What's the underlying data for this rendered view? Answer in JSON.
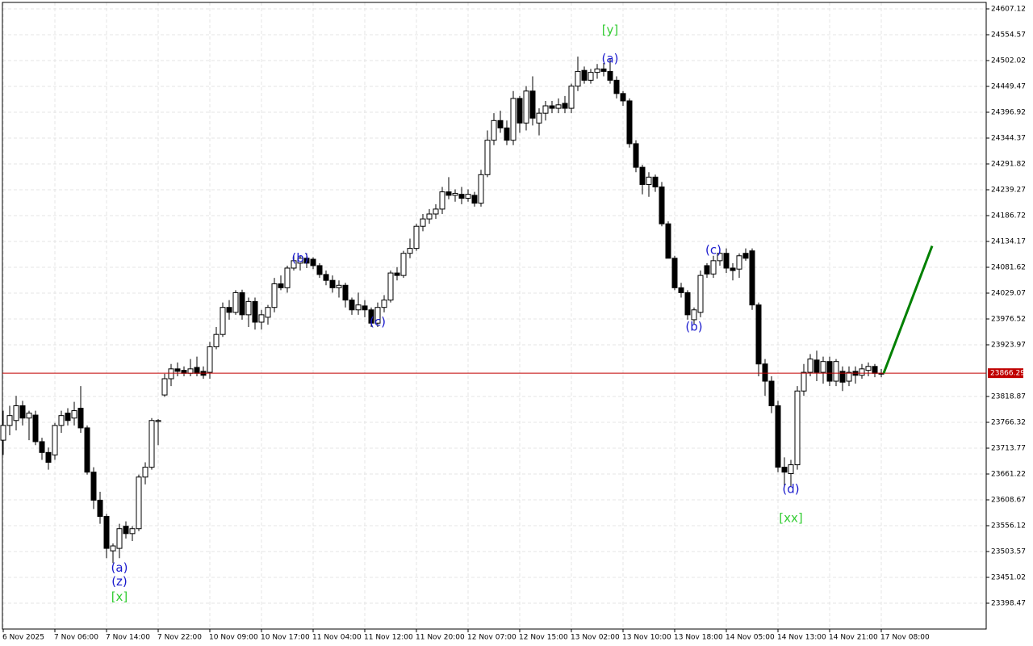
{
  "chart_data": {
    "type": "candlestick",
    "categories": [
      "6 Nov 2025",
      null,
      null,
      null,
      null,
      null,
      null,
      null,
      "7 Nov 06:00",
      null,
      null,
      null,
      null,
      null,
      null,
      null,
      "7 Nov 14:00",
      null,
      null,
      null,
      null,
      null,
      null,
      null,
      "7 Nov 22:00",
      null,
      null,
      null,
      null,
      null,
      null,
      null,
      "10 Nov 09:00",
      null,
      null,
      null,
      null,
      null,
      null,
      null,
      "10 Nov 17:00",
      null,
      null,
      null,
      null,
      null,
      null,
      null,
      "11 Nov 04:00",
      null,
      null,
      null,
      null,
      null,
      null,
      null,
      "11 Nov 12:00",
      null,
      null,
      null,
      null,
      null,
      null,
      null,
      "11 Nov 20:00",
      null,
      null,
      null,
      null,
      null,
      null,
      null,
      "12 Nov 07:00",
      null,
      null,
      null,
      null,
      null,
      null,
      null,
      "12 Nov 15:00",
      null,
      null,
      null,
      null,
      null,
      null,
      null,
      "13 Nov 02:00",
      null,
      null,
      null,
      null,
      null,
      null,
      null,
      "13 Nov 10:00",
      null,
      null,
      null,
      null,
      null,
      null,
      null,
      "13 Nov 18:00",
      null,
      null,
      null,
      null,
      null,
      null,
      null,
      "14 Nov 05:00",
      null,
      null,
      null,
      null,
      null,
      null,
      null,
      "14 Nov 13:00",
      null,
      null,
      null,
      null,
      null,
      null,
      null,
      "14 Nov 21:00",
      null,
      null,
      null,
      null,
      null,
      null,
      null,
      "17 Nov 08:00"
    ],
    "candles": [
      [
        23730,
        23790,
        23700,
        23760
      ],
      [
        23760,
        23800,
        23740,
        23780
      ],
      [
        23770,
        23820,
        23750,
        23800
      ],
      [
        23800,
        23810,
        23760,
        23775
      ],
      [
        23775,
        23790,
        23730,
        23785
      ],
      [
        23781,
        23790,
        23720,
        23727
      ],
      [
        23727,
        23735,
        23690,
        23705
      ],
      [
        23705,
        23715,
        23670,
        23685
      ],
      [
        23700,
        23765,
        23690,
        23760
      ],
      [
        23760,
        23790,
        23745,
        23780
      ],
      [
        23785,
        23795,
        23760,
        23770
      ],
      [
        23775,
        23808,
        23760,
        23790
      ],
      [
        23795,
        23840,
        23745,
        23755
      ],
      [
        23755,
        23760,
        23660,
        23665
      ],
      [
        23665,
        23675,
        23590,
        23608
      ],
      [
        23608,
        23625,
        23560,
        23575
      ],
      [
        23575,
        23580,
        23490,
        23510
      ],
      [
        23505,
        23520,
        23480,
        23515
      ],
      [
        23510,
        23560,
        23490,
        23550
      ],
      [
        23555,
        23565,
        23530,
        23540
      ],
      [
        23540,
        23555,
        23525,
        23550
      ],
      [
        23550,
        23660,
        23545,
        23655
      ],
      [
        23655,
        23685,
        23640,
        23675
      ],
      [
        23675,
        23775,
        23670,
        23770
      ],
      [
        23768,
        23773,
        23720,
        23770
      ],
      [
        23822,
        23865,
        23818,
        23855
      ],
      [
        23855,
        23885,
        23840,
        23875
      ],
      [
        23875,
        23888,
        23860,
        23870
      ],
      [
        23872,
        23880,
        23860,
        23866
      ],
      [
        23866,
        23895,
        23860,
        23875
      ],
      [
        23878,
        23900,
        23860,
        23866
      ],
      [
        23870,
        23880,
        23855,
        23862
      ],
      [
        23868,
        23930,
        23855,
        23920
      ],
      [
        23920,
        23960,
        23915,
        23945
      ],
      [
        23945,
        24010,
        23940,
        24000
      ],
      [
        24000,
        24015,
        23975,
        23990
      ],
      [
        23990,
        24035,
        23985,
        24030
      ],
      [
        24030,
        24036,
        23975,
        23985
      ],
      [
        23985,
        24020,
        23960,
        24012
      ],
      [
        24012,
        24020,
        23955,
        23970
      ],
      [
        23970,
        23995,
        23955,
        23985
      ],
      [
        23980,
        24005,
        23965,
        24000
      ],
      [
        24000,
        24060,
        23990,
        24048
      ],
      [
        24048,
        24065,
        24035,
        24040
      ],
      [
        24040,
        24085,
        24030,
        24080
      ],
      [
        24080,
        24105,
        24075,
        24095
      ],
      [
        24090,
        24105,
        24075,
        24100
      ],
      [
        24100,
        24110,
        24080,
        24090
      ],
      [
        24098,
        24102,
        24078,
        24085
      ],
      [
        24085,
        24090,
        24060,
        24067
      ],
      [
        24067,
        24075,
        24045,
        24055
      ],
      [
        24055,
        24065,
        24030,
        24040
      ],
      [
        24040,
        24055,
        24020,
        24045
      ],
      [
        24045,
        24050,
        24000,
        24015
      ],
      [
        24015,
        24020,
        23985,
        23995
      ],
      [
        23995,
        24030,
        23985,
        24005
      ],
      [
        24003,
        24015,
        23980,
        23995
      ],
      [
        23995,
        24000,
        23960,
        23968
      ],
      [
        23968,
        24010,
        23960,
        24000
      ],
      [
        24000,
        24025,
        23990,
        24015
      ],
      [
        24015,
        24075,
        24010,
        24070
      ],
      [
        24070,
        24082,
        24055,
        24065
      ],
      [
        24065,
        24115,
        24060,
        24110
      ],
      [
        24110,
        24140,
        24100,
        24120
      ],
      [
        24120,
        24170,
        24115,
        24165
      ],
      [
        24165,
        24190,
        24155,
        24180
      ],
      [
        24180,
        24200,
        24170,
        24190
      ],
      [
        24190,
        24210,
        24180,
        24200
      ],
      [
        24200,
        24245,
        24190,
        24235
      ],
      [
        24235,
        24265,
        24220,
        24228
      ],
      [
        24228,
        24240,
        24215,
        24232
      ],
      [
        24230,
        24245,
        24210,
        24222
      ],
      [
        24222,
        24240,
        24215,
        24230
      ],
      [
        24228,
        24235,
        24205,
        24212
      ],
      [
        24212,
        24280,
        24205,
        24270
      ],
      [
        24270,
        24360,
        24265,
        24340
      ],
      [
        24340,
        24395,
        24330,
        24380
      ],
      [
        24380,
        24400,
        24355,
        24365
      ],
      [
        24365,
        24380,
        24330,
        24340
      ],
      [
        24340,
        24440,
        24330,
        24425
      ],
      [
        24425,
        24430,
        24355,
        24375
      ],
      [
        24375,
        24450,
        24360,
        24440
      ],
      [
        24440,
        24470,
        24370,
        24385
      ],
      [
        24375,
        24405,
        24350,
        24395
      ],
      [
        24395,
        24420,
        24380,
        24410
      ],
      [
        24410,
        24420,
        24395,
        24405
      ],
      [
        24405,
        24425,
        24395,
        24412
      ],
      [
        24415,
        24430,
        24395,
        24405
      ],
      [
        24405,
        24455,
        24395,
        24450
      ],
      [
        24450,
        24510,
        24440,
        24480
      ],
      [
        24482,
        24490,
        24455,
        24462
      ],
      [
        24462,
        24485,
        24455,
        24478
      ],
      [
        24478,
        24495,
        24465,
        24485
      ],
      [
        24485,
        24497,
        24470,
        24480
      ],
      [
        24480,
        24505,
        24455,
        24462
      ],
      [
        24462,
        24470,
        24425,
        24435
      ],
      [
        24435,
        24440,
        24410,
        24420
      ],
      [
        24420,
        24425,
        24325,
        24333
      ],
      [
        24333,
        24340,
        24275,
        24285
      ],
      [
        24285,
        24290,
        24230,
        24250
      ],
      [
        24250,
        24275,
        24225,
        24265
      ],
      [
        24265,
        24270,
        24235,
        24245
      ],
      [
        24245,
        24255,
        24165,
        24170
      ],
      [
        24170,
        24175,
        24100,
        24100
      ],
      [
        24100,
        24105,
        24035,
        24040
      ],
      [
        24040,
        24050,
        24020,
        24030
      ],
      [
        24030,
        24035,
        23975,
        23985
      ],
      [
        23975,
        24000,
        23965,
        23995
      ],
      [
        23990,
        24075,
        23980,
        24065
      ],
      [
        24085,
        24090,
        24060,
        24068
      ],
      [
        24068,
        24105,
        24060,
        24095
      ],
      [
        24095,
        24120,
        24085,
        24110
      ],
      [
        24110,
        24120,
        24070,
        24080
      ],
      [
        24080,
        24090,
        24055,
        24075
      ],
      [
        24078,
        24110,
        24060,
        24105
      ],
      [
        24110,
        24120,
        24095,
        24100
      ],
      [
        24115,
        24120,
        23995,
        24005
      ],
      [
        24005,
        24010,
        23860,
        23885
      ],
      [
        23885,
        23895,
        23820,
        23850
      ],
      [
        23850,
        23860,
        23785,
        23800
      ],
      [
        23800,
        23810,
        23665,
        23675
      ],
      [
        23675,
        23695,
        23635,
        23665
      ],
      [
        23662,
        23690,
        23635,
        23680
      ],
      [
        23680,
        23840,
        23670,
        23830
      ],
      [
        23830,
        23885,
        23820,
        23868
      ],
      [
        23868,
        23905,
        23860,
        23895
      ],
      [
        23893,
        23912,
        23850,
        23868
      ],
      [
        23868,
        23900,
        23845,
        23890
      ],
      [
        23890,
        23900,
        23840,
        23850
      ],
      [
        23850,
        23895,
        23840,
        23890
      ],
      [
        23870,
        23880,
        23830,
        23848
      ],
      [
        23850,
        23880,
        23840,
        23868
      ],
      [
        23870,
        23880,
        23845,
        23862
      ],
      [
        23862,
        23885,
        23855,
        23875
      ],
      [
        23872,
        23888,
        23860,
        23880
      ],
      [
        23880,
        23885,
        23858,
        23866
      ],
      [
        23866,
        23875,
        23858,
        23866
      ]
    ],
    "ylim": [
      23345.92,
      24620.26
    ],
    "yticks": [
      24607.12,
      24554.57,
      24502.02,
      24449.47,
      24396.92,
      24344.37,
      24291.82,
      24239.27,
      24186.72,
      24134.17,
      24081.62,
      24029.07,
      23976.52,
      23923.97,
      23818.87,
      23766.32,
      23713.77,
      23661.22,
      23608.67,
      23556.12,
      23503.57,
      23451.02,
      23398.47
    ],
    "grid": true,
    "current_price": 23866.29,
    "current_price_color": "#c00000",
    "forecast": {
      "start": 23866.29,
      "end": 24125,
      "color": "#008000"
    },
    "annotations": [
      {
        "text": "(a)",
        "index": 18,
        "value": 23470,
        "color": "#1a1acd"
      },
      {
        "text": "(z)",
        "index": 18,
        "value": 23442,
        "color": "#1a1acd"
      },
      {
        "text": "[x]",
        "index": 18,
        "value": 23411,
        "color": "#33cc33"
      },
      {
        "text": "(b)",
        "index": 46,
        "value": 24100,
        "color": "#1a1acd"
      },
      {
        "text": "(c)",
        "index": 58,
        "value": 23970,
        "color": "#1a1acd"
      },
      {
        "text": "(a)",
        "index": 94,
        "value": 24505,
        "color": "#1a1acd"
      },
      {
        "text": "[y]",
        "index": 94,
        "value": 24564,
        "color": "#33cc33"
      },
      {
        "text": "(b)",
        "index": 107,
        "value": 23960,
        "color": "#1a1acd"
      },
      {
        "text": "(c)",
        "index": 110,
        "value": 24116,
        "color": "#1a1acd"
      },
      {
        "text": "(d)",
        "index": 122,
        "value": 23630,
        "color": "#1a1acd"
      },
      {
        "text": "[xx]",
        "index": 122,
        "value": 23571,
        "color": "#33cc33"
      }
    ]
  }
}
